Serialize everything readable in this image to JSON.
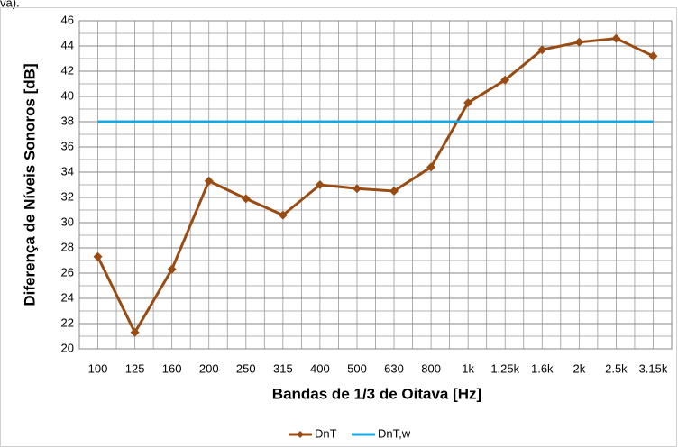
{
  "chart_data": {
    "type": "line",
    "annotation": "va).",
    "x_label": "Bandas de 1/3 de Oitava [Hz]",
    "y_label": "Diferença de Níveis Sonoros [dB]",
    "categories": [
      "100",
      "125",
      "160",
      "200",
      "250",
      "315",
      "400",
      "500",
      "630",
      "800",
      "1k",
      "1.25k",
      "1.6k",
      "2k",
      "2.5k",
      "3.15k"
    ],
    "series": [
      {
        "name": "DnT",
        "color": "#984b12",
        "marker": "diamond",
        "values": [
          27.3,
          21.3,
          26.3,
          33.3,
          31.9,
          30.6,
          33.0,
          32.7,
          32.5,
          34.4,
          39.5,
          41.3,
          43.7,
          44.3,
          44.6,
          43.2
        ]
      },
      {
        "name": "DnT,w",
        "color": "#1ba6dc",
        "marker": "none",
        "values": [
          38,
          38,
          38,
          38,
          38,
          38,
          38,
          38,
          38,
          38,
          38,
          38,
          38,
          38,
          38,
          38
        ]
      }
    ],
    "ylim": [
      20,
      46
    ],
    "yticks": [
      20,
      22,
      24,
      26,
      28,
      30,
      32,
      34,
      36,
      38,
      40,
      42,
      44,
      46
    ],
    "grid": true,
    "legend": "bottom"
  }
}
